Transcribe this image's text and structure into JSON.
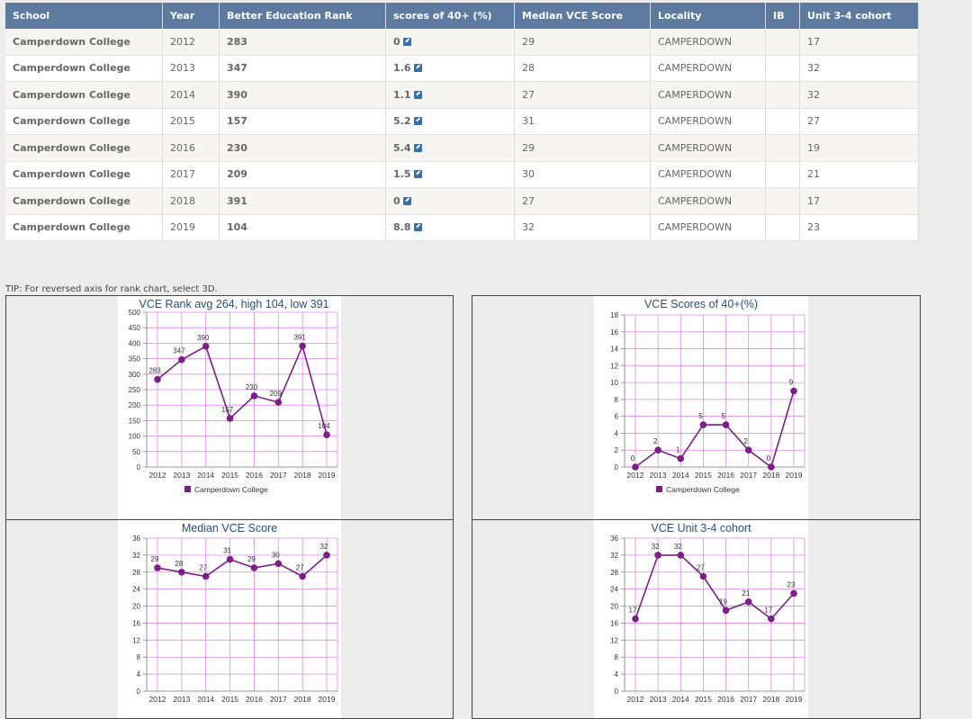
{
  "table": {
    "headers": [
      "School",
      "Year",
      "Better Education Rank",
      "scores of 40+ (%)",
      "Median VCE Score",
      "Locality",
      "IB",
      "Unit 3-4 cohort"
    ],
    "rows": [
      {
        "school": "Camperdown College",
        "year": "2012",
        "rank": "283",
        "scores": "0",
        "median": "29",
        "locality": "CAMPERDOWN",
        "ib": "",
        "cohort": "17"
      },
      {
        "school": "Camperdown College",
        "year": "2013",
        "rank": "347",
        "scores": "1.6",
        "median": "28",
        "locality": "CAMPERDOWN",
        "ib": "",
        "cohort": "32"
      },
      {
        "school": "Camperdown College",
        "year": "2014",
        "rank": "390",
        "scores": "1.1",
        "median": "27",
        "locality": "CAMPERDOWN",
        "ib": "",
        "cohort": "32"
      },
      {
        "school": "Camperdown College",
        "year": "2015",
        "rank": "157",
        "scores": "5.2",
        "median": "31",
        "locality": "CAMPERDOWN",
        "ib": "",
        "cohort": "27"
      },
      {
        "school": "Camperdown College",
        "year": "2016",
        "rank": "230",
        "scores": "5.4",
        "median": "29",
        "locality": "CAMPERDOWN",
        "ib": "",
        "cohort": "19"
      },
      {
        "school": "Camperdown College",
        "year": "2017",
        "rank": "209",
        "scores": "1.5",
        "median": "30",
        "locality": "CAMPERDOWN",
        "ib": "",
        "cohort": "21"
      },
      {
        "school": "Camperdown College",
        "year": "2018",
        "rank": "391",
        "scores": "0",
        "median": "27",
        "locality": "CAMPERDOWN",
        "ib": "",
        "cohort": "17"
      },
      {
        "school": "Camperdown College",
        "year": "2019",
        "rank": "104",
        "scores": "8.8",
        "median": "32",
        "locality": "CAMPERDOWN",
        "ib": "",
        "cohort": "23"
      }
    ]
  },
  "tip": "TIP: For reversed axis for rank chart, select 3D.",
  "colors": {
    "series": "#7b1f86",
    "grid": "#dd88ee",
    "header": "#5d7ba0",
    "link": "#3b6ea5"
  },
  "chart_data": [
    {
      "type": "line",
      "title": "VCE Rank avg 264, high 104, low 391",
      "categories": [
        "2012",
        "2013",
        "2014",
        "2015",
        "2016",
        "2017",
        "2018",
        "2019"
      ],
      "series": [
        {
          "name": "Camperdown College",
          "values": [
            283,
            347,
            390,
            157,
            230,
            209,
            391,
            104
          ]
        }
      ],
      "labels": [
        "283",
        "347",
        "390",
        "157",
        "230",
        "209",
        "391",
        "104"
      ],
      "ylim": [
        0,
        500
      ],
      "yticks": [
        0,
        50,
        100,
        150,
        200,
        250,
        300,
        350,
        400,
        450,
        500
      ],
      "legend": "bottom",
      "grid": true
    },
    {
      "type": "line",
      "title": "VCE Scores of 40+(%)",
      "categories": [
        "2012",
        "2013",
        "2014",
        "2015",
        "2016",
        "2017",
        "2018",
        "2019"
      ],
      "series": [
        {
          "name": "Camperdown College",
          "values": [
            0,
            2,
            1,
            5,
            5,
            2,
            0,
            9
          ]
        }
      ],
      "labels": [
        "0",
        "2",
        "1",
        "5",
        "5",
        "2",
        "0",
        "9"
      ],
      "ylim": [
        0,
        18
      ],
      "yticks": [
        0,
        2,
        4,
        6,
        8,
        10,
        12,
        14,
        16,
        18
      ],
      "legend": "bottom",
      "grid": true
    },
    {
      "type": "line",
      "title": "Median VCE Score",
      "categories": [
        "2012",
        "2013",
        "2014",
        "2015",
        "2016",
        "2017",
        "2018",
        "2019"
      ],
      "series": [
        {
          "name": "Camperdown College",
          "values": [
            29,
            28,
            27,
            31,
            29,
            30,
            27,
            32
          ]
        }
      ],
      "labels": [
        "29",
        "28",
        "27",
        "31",
        "29",
        "30",
        "27",
        "32"
      ],
      "ylim": [
        0,
        36
      ],
      "yticks": [
        0,
        4,
        8,
        12,
        16,
        20,
        24,
        28,
        32,
        36
      ],
      "legend": "none",
      "grid": true
    },
    {
      "type": "line",
      "title": "VCE Unit 3-4 cohort",
      "categories": [
        "2012",
        "2013",
        "2014",
        "2015",
        "2016",
        "2017",
        "2018",
        "2019"
      ],
      "series": [
        {
          "name": "Camperdown College",
          "values": [
            17,
            32,
            32,
            27,
            19,
            21,
            17,
            23
          ]
        }
      ],
      "labels": [
        "17",
        "32",
        "32",
        "27",
        "19",
        "21",
        "17",
        "23"
      ],
      "ylim": [
        0,
        36
      ],
      "yticks": [
        0,
        4,
        8,
        12,
        16,
        20,
        24,
        28,
        32,
        36
      ],
      "legend": "none",
      "grid": true
    }
  ]
}
